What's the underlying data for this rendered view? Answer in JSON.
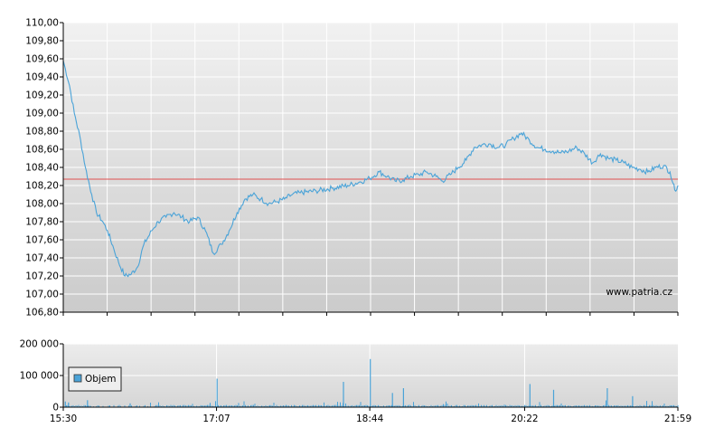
{
  "chart_data": [
    {
      "type": "line",
      "title": "",
      "xlabel": "",
      "ylabel": "",
      "ylim": [
        106.8,
        110.0
      ],
      "y_ticks": [
        "110,00",
        "109,80",
        "109,60",
        "109,40",
        "109,20",
        "109,00",
        "108,80",
        "108,60",
        "108,40",
        "108,20",
        "108,00",
        "107,80",
        "107,60",
        "107,40",
        "107,20",
        "107,00",
        "106,80"
      ],
      "x_range": [
        "15:30",
        "21:59"
      ],
      "reference_line": 108.27,
      "grid": true,
      "watermark": "www.patria.cz",
      "colors": {
        "line": "#4aa3d8",
        "reference": "#e05050",
        "grid": "#ffffff"
      },
      "series": [
        {
          "name": "",
          "x": [
            "15:30",
            "15:34",
            "15:37",
            "15:41",
            "15:44",
            "15:48",
            "15:51",
            "15:55",
            "15:58",
            "16:02",
            "16:05",
            "16:09",
            "16:13",
            "16:17",
            "16:21",
            "16:26",
            "16:30",
            "16:35",
            "16:40",
            "16:45",
            "16:50",
            "16:55",
            "17:00",
            "17:05",
            "17:10",
            "17:15",
            "17:20",
            "17:25",
            "17:30",
            "17:35",
            "17:40",
            "17:45",
            "17:50",
            "17:55",
            "18:00",
            "18:10",
            "18:20",
            "18:30",
            "18:38",
            "18:44",
            "18:50",
            "18:55",
            "19:00",
            "19:05",
            "19:10",
            "19:15",
            "19:20",
            "19:26",
            "19:30",
            "19:35",
            "19:40",
            "19:45",
            "19:50",
            "19:55",
            "20:00",
            "20:05",
            "20:10",
            "20:15",
            "20:20",
            "20:25",
            "20:30",
            "20:35",
            "20:40",
            "20:45",
            "20:50",
            "20:55",
            "21:00",
            "21:05",
            "21:10",
            "21:15",
            "21:20",
            "21:25",
            "21:30",
            "21:35",
            "21:40",
            "21:45",
            "21:50",
            "21:54",
            "21:56",
            "21:57",
            "21:59"
          ],
          "values": [
            109.58,
            109.3,
            109.0,
            108.7,
            108.4,
            108.1,
            107.9,
            107.8,
            107.7,
            107.5,
            107.35,
            107.2,
            107.22,
            107.3,
            107.55,
            107.7,
            107.8,
            107.85,
            107.9,
            107.85,
            107.8,
            107.85,
            107.7,
            107.45,
            107.55,
            107.7,
            107.9,
            108.05,
            108.1,
            108.05,
            108.0,
            108.02,
            108.05,
            108.1,
            108.12,
            108.14,
            108.17,
            108.2,
            108.24,
            108.28,
            108.35,
            108.3,
            108.25,
            108.26,
            108.3,
            108.32,
            108.35,
            108.3,
            108.25,
            108.32,
            108.4,
            108.48,
            108.62,
            108.65,
            108.66,
            108.62,
            108.65,
            108.72,
            108.78,
            108.7,
            108.62,
            108.6,
            108.58,
            108.56,
            108.58,
            108.62,
            108.55,
            108.45,
            108.55,
            108.5,
            108.48,
            108.45,
            108.4,
            108.38,
            108.35,
            108.4,
            108.42,
            108.35,
            108.22,
            108.15,
            108.2
          ]
        }
      ]
    },
    {
      "type": "bar",
      "title": "",
      "xlabel": "",
      "ylabel": "",
      "ylim": [
        0,
        200000
      ],
      "y_ticks": [
        "200 000",
        "100 000",
        "0"
      ],
      "x_ticks": [
        "15:30",
        "17:07",
        "18:44",
        "20:22",
        "21:59"
      ],
      "legend": "Objem",
      "legend_position": "bottom-left",
      "colors": {
        "bar": "#4aa3d8"
      },
      "series": [
        {
          "name": "Objem",
          "x": [
            "15:31",
            "15:33",
            "15:45",
            "16:12",
            "17:07",
            "18:27",
            "18:44",
            "18:58",
            "19:05",
            "20:25",
            "20:40",
            "21:14",
            "21:30"
          ],
          "values": [
            18000,
            15000,
            22000,
            12000,
            90000,
            80000,
            152000,
            45000,
            60000,
            73000,
            55000,
            60000,
            35000
          ]
        }
      ]
    }
  ]
}
